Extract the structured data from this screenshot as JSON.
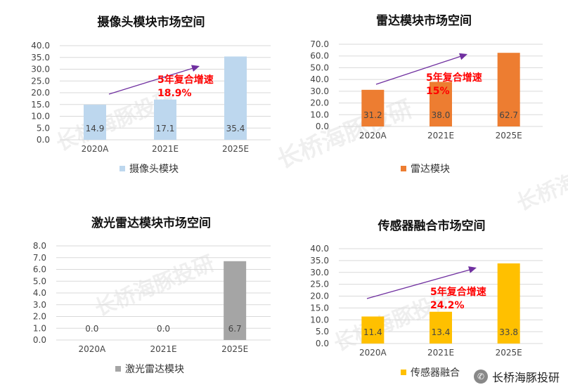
{
  "watermark": "长桥海豚投研",
  "footer": {
    "brand": "长桥海豚投研",
    "icon": "wechat-icon"
  },
  "chart_data": [
    {
      "type": "bar",
      "title": "摄像头模块市场空间",
      "categories": [
        "2020A",
        "2021E",
        "2025E"
      ],
      "series": [
        {
          "name": "摄像头模块",
          "values": [
            14.9,
            17.1,
            35.4
          ]
        }
      ],
      "value_labels": [
        "14.9",
        "17.1",
        "35.4"
      ],
      "ylim": [
        0,
        40
      ],
      "yticks": [
        "0.0",
        "5.0",
        "10.0",
        "15.0",
        "20.0",
        "25.0",
        "30.0",
        "35.0",
        "40.0"
      ],
      "color": "#bdd7ee",
      "grid": true,
      "legend_position": "bottom",
      "annotation": {
        "line1": "5年复合增速",
        "line2": "18.9%"
      }
    },
    {
      "type": "bar",
      "title": "雷达模块市场空间",
      "categories": [
        "2020A",
        "2021E",
        "2025E"
      ],
      "series": [
        {
          "name": "雷达模块",
          "values": [
            31.2,
            38.0,
            62.7
          ]
        }
      ],
      "value_labels": [
        "31.2",
        "38.0",
        "62.7"
      ],
      "ylim": [
        0,
        70
      ],
      "yticks": [
        "0.0",
        "10.0",
        "20.0",
        "30.0",
        "40.0",
        "50.0",
        "60.0",
        "70.0"
      ],
      "color": "#ed7d31",
      "grid": true,
      "legend_position": "bottom",
      "annotation": {
        "line1": "5年复合增速",
        "line2": "15%"
      }
    },
    {
      "type": "bar",
      "title": "激光雷达模块市场空间",
      "categories": [
        "2020A",
        "2021E",
        "2025E"
      ],
      "series": [
        {
          "name": "激光雷达模块",
          "values": [
            0.0,
            0.0,
            6.7
          ]
        }
      ],
      "value_labels": [
        "0.0",
        "0.0",
        "6.7"
      ],
      "ylim": [
        0,
        8
      ],
      "yticks": [
        "0.0",
        "1.0",
        "2.0",
        "3.0",
        "4.0",
        "5.0",
        "6.0",
        "7.0",
        "8.0"
      ],
      "color": "#a5a5a5",
      "grid": true,
      "legend_position": "bottom"
    },
    {
      "type": "bar",
      "title": "传感器融合市场空间",
      "categories": [
        "2020A",
        "2021E",
        "2025E"
      ],
      "series": [
        {
          "name": "传感器融合",
          "values": [
            11.4,
            13.4,
            33.8
          ]
        }
      ],
      "value_labels": [
        "11.4",
        "13.4",
        "33.8"
      ],
      "ylim": [
        0,
        40
      ],
      "yticks": [
        "0.0",
        "5.0",
        "10.0",
        "15.0",
        "20.0",
        "25.0",
        "30.0",
        "35.0",
        "40.0"
      ],
      "color": "#ffc000",
      "grid": true,
      "legend_position": "bottom",
      "annotation": {
        "line1": "5年复合增速",
        "line2": "24.2%"
      }
    }
  ]
}
